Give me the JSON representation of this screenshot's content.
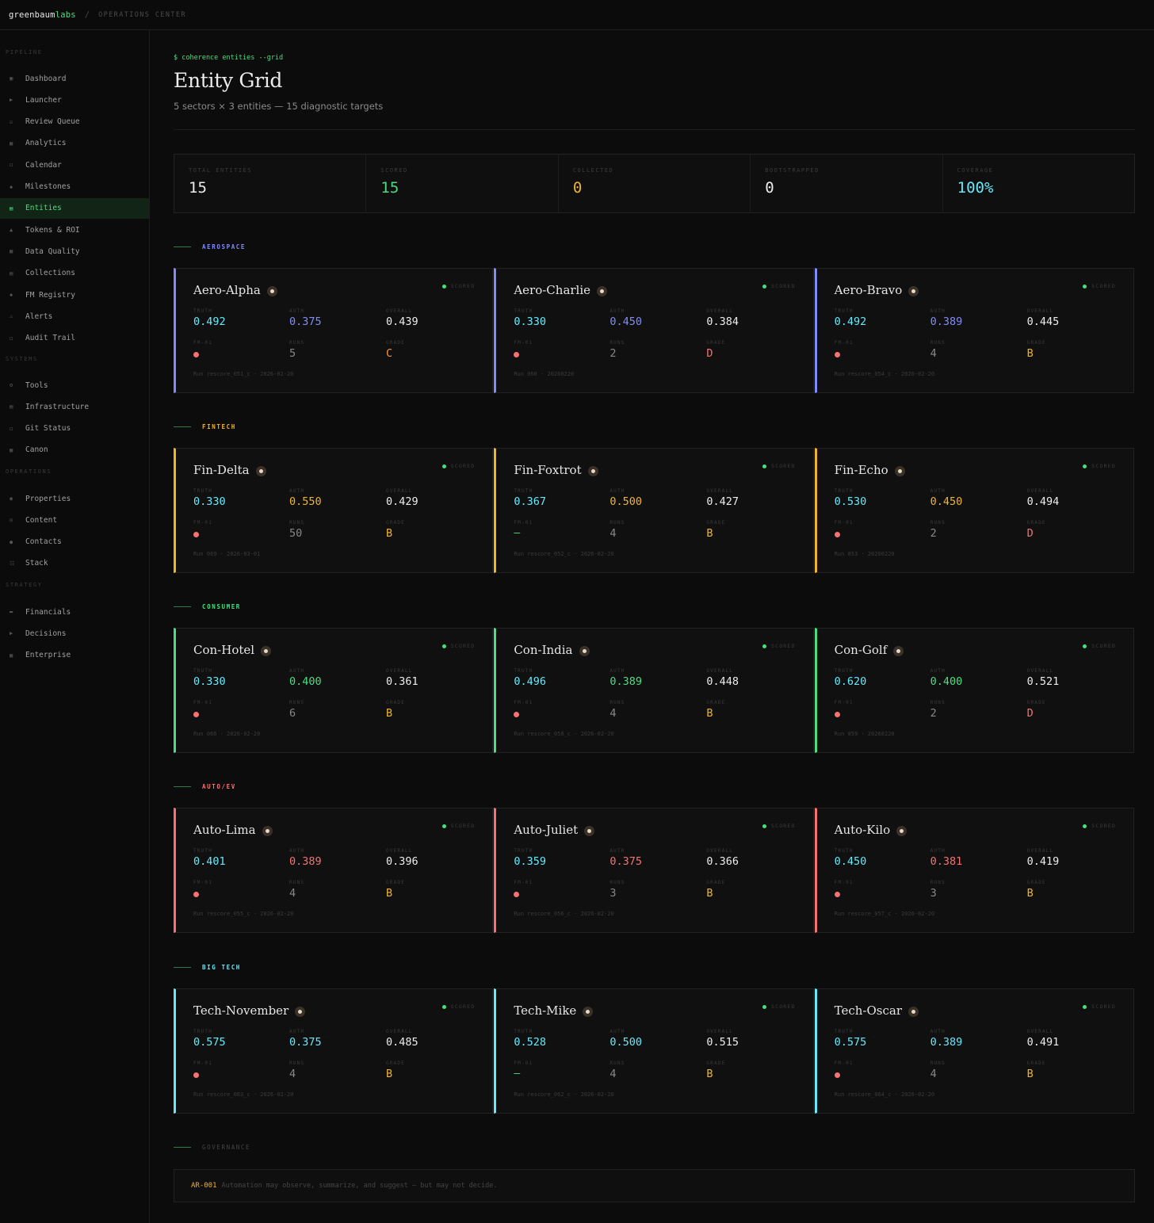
{
  "topbar": {
    "brand_main": "greenbaum",
    "brand_accent": "labs",
    "separator": "/",
    "crumb": "OPERATIONS CENTER"
  },
  "sidebar": {
    "groups": [
      {
        "title": "PIPELINE",
        "items": [
          {
            "icon": "▣",
            "label": "Dashboard"
          },
          {
            "icon": "▶",
            "label": "Launcher"
          },
          {
            "icon": "☑",
            "label": "Review Queue"
          },
          {
            "icon": "▦",
            "label": "Analytics"
          },
          {
            "icon": "◻",
            "label": "Calendar"
          },
          {
            "icon": "◆",
            "label": "Milestones"
          },
          {
            "icon": "▤",
            "label": "Entities",
            "active": true
          },
          {
            "icon": "▲",
            "label": "Tokens & ROI"
          },
          {
            "icon": "▦",
            "label": "Data Quality"
          },
          {
            "icon": "▤",
            "label": "Collections"
          },
          {
            "icon": "◆",
            "label": "FM Registry"
          },
          {
            "icon": "⚠",
            "label": "Alerts"
          },
          {
            "icon": "◻",
            "label": "Audit Trail"
          }
        ]
      },
      {
        "title": "SYSTEMS",
        "items": [
          {
            "icon": "⚙",
            "label": "Tools"
          },
          {
            "icon": "▤",
            "label": "Infrastructure"
          },
          {
            "icon": "◻",
            "label": "Git Status"
          },
          {
            "icon": "▦",
            "label": "Canon"
          }
        ]
      },
      {
        "title": "OPERATIONS",
        "items": [
          {
            "icon": "◉",
            "label": "Properties"
          },
          {
            "icon": "◎",
            "label": "Content"
          },
          {
            "icon": "●",
            "label": "Contacts"
          },
          {
            "icon": "☷",
            "label": "Stack"
          }
        ]
      },
      {
        "title": "STRATEGY",
        "items": [
          {
            "icon": "▬",
            "label": "Financials"
          },
          {
            "icon": "▶",
            "label": "Decisions"
          },
          {
            "icon": "▦",
            "label": "Enterprise"
          }
        ]
      }
    ]
  },
  "header": {
    "command": "$ coherence entities --grid",
    "title": "Entity Grid",
    "subtitle": "5 sectors × 3 entities — 15 diagnostic targets"
  },
  "stats": [
    {
      "label": "TOTAL ENTITIES",
      "value": "15",
      "color": "#ececec"
    },
    {
      "label": "SCORED",
      "value": "15",
      "color": "#4ade80"
    },
    {
      "label": "COLLECTED",
      "value": "0",
      "color": "#f0b429"
    },
    {
      "label": "BOOTSTRAPPED",
      "value": "0",
      "color": "#ececec"
    },
    {
      "label": "COVERAGE",
      "value": "100%",
      "color": "#67e8f9"
    }
  ],
  "labels": {
    "status": "SCORED",
    "truth": "TRUTH",
    "auth": "AUTH",
    "overall": "OVERALL",
    "fm": "FM-01",
    "runs": "RUNS",
    "grade": "GRADE"
  },
  "sectors": [
    {
      "name": "AEROSPACE",
      "color": "#818cf8",
      "entities": [
        {
          "name": "Aero-Alpha",
          "truth": "0.492",
          "auth": "0.375",
          "overall": "0.439",
          "fm": "dot",
          "runs": "5",
          "grade": "C",
          "run": "Run rescore_051_c · 2026-02-20"
        },
        {
          "name": "Aero-Charlie",
          "truth": "0.330",
          "auth": "0.450",
          "overall": "0.384",
          "fm": "dot",
          "runs": "2",
          "grade": "D",
          "run": "Run 060 · 20260220"
        },
        {
          "name": "Aero-Bravo",
          "truth": "0.492",
          "auth": "0.389",
          "overall": "0.445",
          "fm": "dot",
          "runs": "4",
          "grade": "B",
          "run": "Run rescore_054_c · 2026-02-20"
        }
      ]
    },
    {
      "name": "FINTECH",
      "color": "#f0b429",
      "entities": [
        {
          "name": "Fin-Delta",
          "truth": "0.330",
          "auth": "0.550",
          "overall": "0.429",
          "fm": "dot",
          "runs": "50",
          "grade": "B",
          "run": "Run 069 · 2026-03-01"
        },
        {
          "name": "Fin-Foxtrot",
          "truth": "0.367",
          "auth": "0.500",
          "overall": "0.427",
          "fm": "dash",
          "runs": "4",
          "grade": "B",
          "run": "Run rescore_052_c · 2026-02-20"
        },
        {
          "name": "Fin-Echo",
          "truth": "0.530",
          "auth": "0.450",
          "overall": "0.494",
          "fm": "dot",
          "runs": "2",
          "grade": "D",
          "run": "Run 053 · 20260220"
        }
      ]
    },
    {
      "name": "CONSUMER",
      "color": "#4ade80",
      "entities": [
        {
          "name": "Con-Hotel",
          "truth": "0.330",
          "auth": "0.400",
          "overall": "0.361",
          "fm": "dot",
          "runs": "6",
          "grade": "B",
          "run": "Run 066 · 2026-02-20"
        },
        {
          "name": "Con-India",
          "truth": "0.496",
          "auth": "0.389",
          "overall": "0.448",
          "fm": "dot",
          "runs": "4",
          "grade": "B",
          "run": "Run rescore_058_c · 2026-02-20"
        },
        {
          "name": "Con-Golf",
          "truth": "0.620",
          "auth": "0.400",
          "overall": "0.521",
          "fm": "dot",
          "runs": "2",
          "grade": "D",
          "run": "Run 059 · 20260220"
        }
      ]
    },
    {
      "name": "AUTO/EV",
      "color": "#f87171",
      "entities": [
        {
          "name": "Auto-Lima",
          "truth": "0.401",
          "auth": "0.389",
          "overall": "0.396",
          "fm": "dot",
          "runs": "4",
          "grade": "B",
          "run": "Run rescore_055_c · 2026-02-20"
        },
        {
          "name": "Auto-Juliet",
          "truth": "0.359",
          "auth": "0.375",
          "overall": "0.366",
          "fm": "dot",
          "runs": "3",
          "grade": "B",
          "run": "Run rescore_056_c · 2026-02-20"
        },
        {
          "name": "Auto-Kilo",
          "truth": "0.450",
          "auth": "0.381",
          "overall": "0.419",
          "fm": "dot",
          "runs": "3",
          "grade": "B",
          "run": "Run rescore_057_c · 2026-02-20"
        }
      ]
    },
    {
      "name": "BIG TECH",
      "color": "#67e8f9",
      "entities": [
        {
          "name": "Tech-November",
          "truth": "0.575",
          "auth": "0.375",
          "overall": "0.485",
          "fm": "dot",
          "runs": "4",
          "grade": "B",
          "run": "Run rescore_063_c · 2026-02-20"
        },
        {
          "name": "Tech-Mike",
          "truth": "0.528",
          "auth": "0.500",
          "overall": "0.515",
          "fm": "dash",
          "runs": "4",
          "grade": "B",
          "run": "Run rescore_062_c · 2026-02-20"
        },
        {
          "name": "Tech-Oscar",
          "truth": "0.575",
          "auth": "0.389",
          "overall": "0.491",
          "fm": "dot",
          "runs": "4",
          "grade": "B",
          "run": "Run rescore_064_c · 2026-02-20"
        }
      ]
    }
  ],
  "grade_colors": {
    "B": "#f0b429",
    "C": "#fb923c",
    "D": "#f87171"
  },
  "truth_color": "#67e8f9",
  "fm_dash": "—",
  "governance": {
    "title": "GOVERNANCE",
    "code": "AR-001",
    "text": "Automation may observe, summarize, and suggest — but may not decide."
  }
}
